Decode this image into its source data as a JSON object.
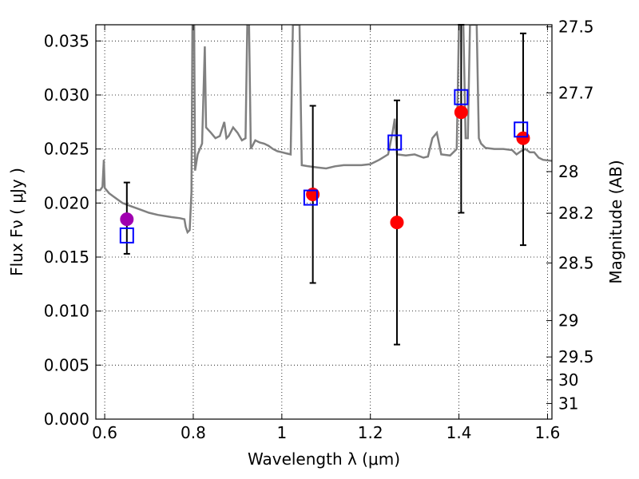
{
  "chart_data": {
    "type": "scatter",
    "xlabel": "Wavelength  λ (μm)",
    "ylabel": "Flux  Fν  ( μJy )",
    "y2label": "Magnitude (AB)",
    "xlim": [
      0.58,
      1.61
    ],
    "ylim": [
      0.0,
      0.0365
    ],
    "grid": true,
    "x_ticks": [
      0.6,
      0.8,
      1.0,
      1.2,
      1.4,
      1.6
    ],
    "x_tick_labels": [
      "0.6",
      "0.8",
      "1",
      "1.2",
      "1.4",
      "1.6"
    ],
    "y_ticks": [
      0.0,
      0.005,
      0.01,
      0.015,
      0.02,
      0.025,
      0.03,
      0.035
    ],
    "y_tick_labels": [
      "0.000",
      "0.005",
      "0.010",
      "0.015",
      "0.020",
      "0.025",
      "0.030",
      "0.035"
    ],
    "y2_ticks": [
      27.5,
      27.7,
      28,
      28.2,
      28.5,
      29,
      29.5,
      30,
      31
    ],
    "y2_tick_labels": [
      "27.5",
      "27.7",
      "28",
      "28.2",
      "28.5",
      "29",
      "29.5",
      "30",
      "31"
    ],
    "observed": [
      {
        "x": 0.65,
        "y": 0.0185,
        "yerr_low": 0.0153,
        "yerr_high": 0.0219,
        "color": "#a000b0"
      },
      {
        "x": 1.07,
        "y": 0.0208,
        "yerr_low": 0.0126,
        "yerr_high": 0.029,
        "color": "#ff0000"
      },
      {
        "x": 1.26,
        "y": 0.0182,
        "yerr_low": 0.0069,
        "yerr_high": 0.0295,
        "color": "#ff0000"
      },
      {
        "x": 1.405,
        "y": 0.0284,
        "yerr_low": 0.0191,
        "yerr_high": 0.0365,
        "color": "#ff0000"
      },
      {
        "x": 1.545,
        "y": 0.026,
        "yerr_low": 0.0161,
        "yerr_high": 0.0357,
        "color": "#ff0000"
      }
    ],
    "model_photometry": {
      "color": "#0000ff",
      "x": [
        0.65,
        1.065,
        1.255,
        1.405,
        1.54
      ],
      "y": [
        0.017,
        0.0205,
        0.0256,
        0.0298,
        0.0268
      ]
    },
    "spectrum": {
      "color": "#808080",
      "points": [
        [
          0.58,
          0.0212
        ],
        [
          0.59,
          0.0212
        ],
        [
          0.595,
          0.0215
        ],
        [
          0.598,
          0.024
        ],
        [
          0.6,
          0.0214
        ],
        [
          0.61,
          0.0209
        ],
        [
          0.62,
          0.0206
        ],
        [
          0.64,
          0.02
        ],
        [
          0.66,
          0.0197
        ],
        [
          0.68,
          0.0194
        ],
        [
          0.7,
          0.0191
        ],
        [
          0.72,
          0.0189
        ],
        [
          0.75,
          0.0187
        ],
        [
          0.77,
          0.0186
        ],
        [
          0.78,
          0.0185
        ],
        [
          0.783,
          0.0178
        ],
        [
          0.787,
          0.0173
        ],
        [
          0.792,
          0.0175
        ],
        [
          0.796,
          0.021
        ],
        [
          0.798,
          0.0365
        ],
        [
          0.802,
          0.0365
        ],
        [
          0.804,
          0.023
        ],
        [
          0.81,
          0.0245
        ],
        [
          0.82,
          0.0255
        ],
        [
          0.823,
          0.03
        ],
        [
          0.826,
          0.0345
        ],
        [
          0.829,
          0.027
        ],
        [
          0.84,
          0.0265
        ],
        [
          0.85,
          0.026
        ],
        [
          0.86,
          0.0262
        ],
        [
          0.87,
          0.0275
        ],
        [
          0.875,
          0.026
        ],
        [
          0.88,
          0.0262
        ],
        [
          0.89,
          0.027
        ],
        [
          0.9,
          0.0265
        ],
        [
          0.91,
          0.0258
        ],
        [
          0.918,
          0.026
        ],
        [
          0.922,
          0.0365
        ],
        [
          0.926,
          0.0365
        ],
        [
          0.93,
          0.025
        ],
        [
          0.94,
          0.0258
        ],
        [
          0.95,
          0.0256
        ],
        [
          0.96,
          0.0255
        ],
        [
          0.97,
          0.0253
        ],
        [
          0.98,
          0.025
        ],
        [
          0.99,
          0.0248
        ],
        [
          1.0,
          0.0247
        ],
        [
          1.01,
          0.0246
        ],
        [
          1.02,
          0.0245
        ],
        [
          1.025,
          0.0365
        ],
        [
          1.04,
          0.0365
        ],
        [
          1.045,
          0.0235
        ],
        [
          1.06,
          0.0234
        ],
        [
          1.08,
          0.0233
        ],
        [
          1.1,
          0.0232
        ],
        [
          1.12,
          0.0234
        ],
        [
          1.14,
          0.0235
        ],
        [
          1.16,
          0.0235
        ],
        [
          1.18,
          0.0235
        ],
        [
          1.2,
          0.0236
        ],
        [
          1.22,
          0.024
        ],
        [
          1.24,
          0.0245
        ],
        [
          1.25,
          0.0265
        ],
        [
          1.255,
          0.0278
        ],
        [
          1.26,
          0.0245
        ],
        [
          1.28,
          0.0244
        ],
        [
          1.3,
          0.0245
        ],
        [
          1.32,
          0.0242
        ],
        [
          1.33,
          0.0243
        ],
        [
          1.34,
          0.026
        ],
        [
          1.35,
          0.0265
        ],
        [
          1.36,
          0.0245
        ],
        [
          1.38,
          0.0244
        ],
        [
          1.395,
          0.025
        ],
        [
          1.4,
          0.0365
        ],
        [
          1.41,
          0.0365
        ],
        [
          1.415,
          0.026
        ],
        [
          1.42,
          0.026
        ],
        [
          1.425,
          0.0365
        ],
        [
          1.44,
          0.0365
        ],
        [
          1.445,
          0.026
        ],
        [
          1.45,
          0.0255
        ],
        [
          1.46,
          0.0251
        ],
        [
          1.48,
          0.025
        ],
        [
          1.5,
          0.025
        ],
        [
          1.52,
          0.0249
        ],
        [
          1.53,
          0.0245
        ],
        [
          1.54,
          0.0248
        ],
        [
          1.55,
          0.025
        ],
        [
          1.56,
          0.0247
        ],
        [
          1.57,
          0.0247
        ],
        [
          1.58,
          0.0242
        ],
        [
          1.59,
          0.024
        ],
        [
          1.61,
          0.0239
        ]
      ]
    }
  }
}
